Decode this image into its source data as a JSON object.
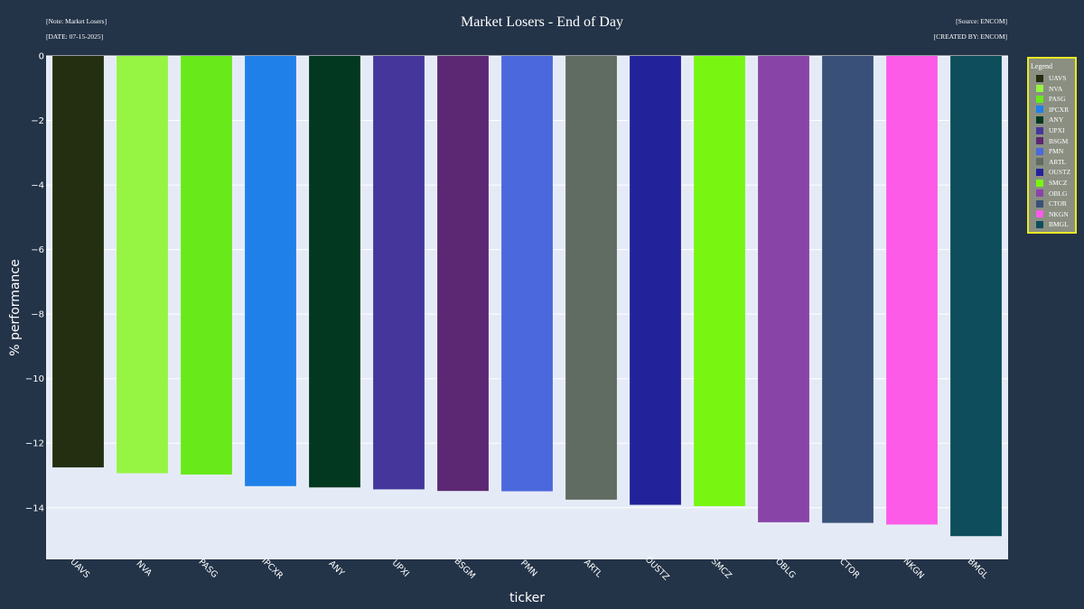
{
  "header": {
    "note": "[Note: Market Losers]",
    "date": "[DATE: 07-15-2025]",
    "source": "[Source: ENCOM]",
    "created_by": "[CREATED BY: ENCOM]"
  },
  "legend_title": "Legend",
  "chart_data": {
    "type": "bar",
    "title": "Market Losers - End of Day",
    "xlabel": "ticker",
    "ylabel": "% performance",
    "ylim": [
      -15.6,
      0
    ],
    "yticks": [
      0,
      -2,
      -4,
      -6,
      -8,
      -10,
      -12,
      -14
    ],
    "ytick_labels": [
      "0",
      "−2",
      "−4",
      "−6",
      "−8",
      "−10",
      "−12",
      "−14"
    ],
    "grid": true,
    "legend_position": "right",
    "categories": [
      "UAVS",
      "NVA",
      "PASG",
      "IPCXR",
      "ANY",
      "UPXI",
      "BSGM",
      "PMN",
      "ARTL",
      "OUSTZ",
      "SMCZ",
      "OBLG",
      "CTOR",
      "NKGN",
      "BMGL"
    ],
    "values": [
      -12.75,
      -12.93,
      -12.97,
      -13.33,
      -13.37,
      -13.43,
      -13.48,
      -13.49,
      -13.75,
      -13.91,
      -13.95,
      -14.45,
      -14.47,
      -14.52,
      -14.88
    ],
    "colors": [
      "#232f10",
      "#96f442",
      "#68e91a",
      "#1f80e9",
      "#023820",
      "#45369c",
      "#5d2873",
      "#4b68dd",
      "#606b62",
      "#22229b",
      "#78f612",
      "#8944a8",
      "#395179",
      "#fc5be8",
      "#0e4d5c"
    ],
    "plot_background": "#e5ebf6",
    "page_background": "#233348"
  }
}
